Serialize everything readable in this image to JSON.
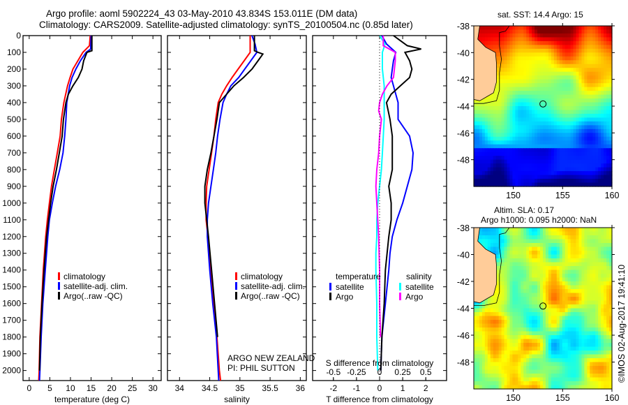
{
  "title": {
    "line1": "Argo profile: aoml 5902224_43 03-May-2010 43.834S 153.011E (DM data)",
    "line2": "Climatology: CARS2009. Satellite-adjusted climatology: synTS_20100504.nc (0.85d later)"
  },
  "colors": {
    "climatology": "#ff0000",
    "satellite": "#0000ff",
    "argo": "#000000",
    "salinity_satellite": "#00ffff",
    "salinity_argo": "#ff00ff",
    "land": "#ffcc99"
  },
  "credit": "ARGO NEW ZEALAND",
  "pi": "PI: PHIL SUTTON",
  "stamp": "©IMOS 02-Aug-2017 19:41:10",
  "chart_data": [
    {
      "type": "line",
      "name": "temperature-profile",
      "xlabel": "temperature (deg C)",
      "ylabel": "",
      "xlim": [
        -1.5,
        32
      ],
      "ylim": [
        2060,
        0
      ],
      "xticks": [
        0,
        5,
        10,
        15,
        20,
        25,
        30
      ],
      "yticks": [
        0,
        100,
        200,
        300,
        400,
        500,
        600,
        700,
        800,
        900,
        1000,
        1100,
        1200,
        1300,
        1400,
        1500,
        1600,
        1700,
        1800,
        1900,
        2000
      ],
      "legend": [
        "climatology",
        "satellite-adj. clim.",
        "Argo(..raw -QC)"
      ],
      "legend_position": "lower-center",
      "series": [
        {
          "name": "climatology",
          "depth": [
            0,
            60,
            100,
            150,
            200,
            250,
            300,
            400,
            500,
            600,
            700,
            800,
            900,
            1000,
            1100,
            1200,
            1400,
            1600,
            1800,
            2000,
            2060
          ],
          "values": [
            14.8,
            14.6,
            13.0,
            11.8,
            10.6,
            9.9,
            9.3,
            8.4,
            7.8,
            7.5,
            6.8,
            6.1,
            5.4,
            4.9,
            4.4,
            4.0,
            3.4,
            3.0,
            2.6,
            2.4,
            2.3
          ]
        },
        {
          "name": "satellite-adj. clim.",
          "depth": [
            0,
            80,
            100,
            150,
            200,
            250,
            300,
            400,
            500,
            600,
            700,
            800,
            900,
            1000,
            1100,
            1200,
            1400,
            1600,
            1800,
            2000,
            2060
          ],
          "values": [
            15.0,
            14.9,
            13.8,
            12.4,
            11.3,
            10.4,
            9.8,
            9.1,
            8.9,
            8.6,
            8.2,
            7.4,
            6.4,
            5.6,
            4.9,
            4.5,
            3.9,
            3.3,
            2.9,
            2.6,
            2.5
          ]
        },
        {
          "name": "Argo(..raw -QC)",
          "depth": [
            0,
            90,
            100,
            150,
            200,
            250,
            300,
            350,
            400,
            500,
            600,
            700,
            800,
            900,
            1000,
            1100,
            1200,
            1400,
            1600,
            1800,
            2000
          ],
          "values": [
            15.2,
            15.2,
            14.0,
            13.2,
            12.8,
            11.9,
            10.6,
            9.5,
            8.9,
            8.3,
            8.0,
            7.3,
            6.6,
            5.8,
            5.2,
            4.7,
            4.2,
            3.6,
            3.1,
            2.7,
            2.5
          ]
        }
      ]
    },
    {
      "type": "line",
      "name": "salinity-profile",
      "xlabel": "salinity",
      "xlim": [
        33.8,
        36.1
      ],
      "ylim": [
        2060,
        0
      ],
      "xticks": [
        34,
        34.5,
        35,
        35.5,
        36
      ],
      "xticklabels": [
        "34",
        "34.5",
        "35",
        "35.5",
        "36"
      ],
      "legend": [
        "climatology",
        "satellite-adj. clim.",
        "Argo(..raw -QC)"
      ],
      "legend_position": "lower-center",
      "series": [
        {
          "name": "climatology",
          "depth": [
            0,
            100,
            150,
            200,
            250,
            300,
            350,
            400,
            500,
            600,
            700,
            800,
            900,
            1000,
            1100,
            1200,
            1400,
            1600,
            1800,
            2000,
            2060
          ],
          "values": [
            35.17,
            35.17,
            35.07,
            34.97,
            34.87,
            34.78,
            34.7,
            34.64,
            34.6,
            34.57,
            34.53,
            34.49,
            34.45,
            34.44,
            34.44,
            34.47,
            34.52,
            34.57,
            34.62,
            34.66,
            34.68
          ]
        },
        {
          "name": "satellite-adj. clim.",
          "depth": [
            0,
            50,
            100,
            150,
            200,
            250,
            300,
            350,
            400,
            500,
            600,
            700,
            800,
            900,
            1000,
            1100,
            1200,
            1400,
            1600,
            1800,
            2000,
            2060
          ],
          "values": [
            35.2,
            35.25,
            35.28,
            35.18,
            35.08,
            34.98,
            34.85,
            34.78,
            34.72,
            34.67,
            34.63,
            34.6,
            34.56,
            34.52,
            34.48,
            34.46,
            34.46,
            34.5,
            34.55,
            34.61,
            34.64,
            34.65
          ]
        },
        {
          "name": "Argo(..raw -QC)",
          "depth": [
            0,
            90,
            100,
            110,
            150,
            200,
            250,
            300,
            350,
            400,
            500,
            600,
            700,
            800,
            900,
            1000,
            1100,
            1200,
            1400,
            1600,
            1800
          ],
          "values": [
            35.24,
            35.24,
            35.3,
            35.38,
            35.3,
            35.2,
            35.06,
            34.9,
            34.78,
            34.66,
            34.62,
            34.57,
            34.52,
            34.46,
            34.42,
            34.42,
            34.45,
            34.48,
            34.53,
            34.58,
            34.63
          ]
        }
      ]
    },
    {
      "type": "line",
      "name": "difference-profile",
      "xlabel": "T difference from climatology",
      "xlabel2": "S difference from climatology",
      "xlim": [
        -2.9,
        2.9
      ],
      "ylim": [
        2060,
        0
      ],
      "xticks": [
        -2,
        -1,
        0,
        1,
        2
      ],
      "xticks2": [
        -0.5,
        -0.25,
        0,
        0.25,
        0.5
      ],
      "xticklabels2": [
        "-0.5",
        "-0.25",
        "0",
        "0.25",
        "0.5"
      ],
      "zero_line": "dotted",
      "legend": {
        "temperature": [
          "satellite",
          "Argo"
        ],
        "salinity": [
          "satellite",
          "Argo"
        ]
      },
      "legend_position": "lower-center",
      "series": [
        {
          "name": "temperature satellite",
          "depth": [
            0,
            50,
            100,
            150,
            200,
            250,
            300,
            350,
            400,
            500,
            600,
            700,
            800,
            900,
            1000,
            1100,
            1200,
            1300,
            1400,
            1600,
            1800,
            2000
          ],
          "values": [
            0.1,
            0.3,
            0.7,
            0.6,
            0.55,
            0.5,
            0.6,
            0.7,
            0.8,
            0.8,
            1.3,
            1.45,
            1.4,
            1.2,
            1.0,
            0.75,
            0.55,
            0.45,
            0.4,
            0.25,
            0.1,
            0.05
          ]
        },
        {
          "name": "temperature Argo",
          "depth": [
            0,
            20,
            60,
            80,
            100,
            150,
            200,
            250,
            300,
            350,
            400,
            500,
            600,
            700,
            800,
            900,
            1000,
            1100,
            1200,
            1400,
            1600,
            1800,
            2000
          ],
          "values": [
            0.6,
            0.8,
            1.2,
            1.8,
            1.1,
            1.3,
            1.4,
            1.3,
            0.9,
            0.5,
            0.3,
            0.45,
            0.55,
            0.55,
            0.55,
            0.4,
            0.5,
            0.5,
            0.4,
            0.25,
            0.2,
            0.1,
            0.05
          ]
        },
        {
          "name": "salinity satellite",
          "depth": [
            0,
            50,
            100,
            200,
            300,
            400,
            500,
            600,
            700,
            800,
            900,
            1000,
            1100,
            1200,
            1300,
            1400,
            1600,
            1800,
            2000
          ],
          "values": [
            0.0,
            0.06,
            0.03,
            0.03,
            0.05,
            0.05,
            0.05,
            0.04,
            0.03,
            0.02,
            0.0,
            -0.02,
            -0.03,
            -0.03,
            -0.04,
            -0.04,
            -0.03,
            -0.03,
            -0.02
          ]
        },
        {
          "name": "salinity Argo",
          "depth": [
            0,
            60,
            100,
            150,
            250,
            300,
            350,
            400,
            450,
            500,
            600,
            700,
            800,
            900,
            1000,
            1200,
            1400,
            1600,
            1800
          ],
          "values": [
            0.04,
            0.04,
            0.17,
            0.17,
            0.15,
            0.08,
            0.03,
            0.0,
            -0.01,
            0.02,
            0.0,
            -0.01,
            -0.03,
            -0.04,
            -0.03,
            -0.01,
            0.0,
            0.0,
            0.01
          ]
        }
      ]
    },
    {
      "type": "heatmap",
      "name": "sst-map",
      "title": "sat. SST: 14.4 Argo: 15",
      "xlim": [
        146,
        160
      ],
      "ylim": [
        -50,
        -38
      ],
      "xticks": [
        150,
        155,
        160
      ],
      "yticks": [
        -38,
        -40,
        -42,
        -44,
        -46,
        -48
      ],
      "marker": {
        "lon": 153.011,
        "lat": -43.834
      }
    },
    {
      "type": "heatmap",
      "name": "sla-map",
      "title": "Altim. SLA: 0.17",
      "subtitle": "Argo h1000: 0.095 h2000: NaN",
      "xlim": [
        146,
        160
      ],
      "ylim": [
        -50,
        -38
      ],
      "xticks": [
        150,
        155,
        160
      ],
      "yticks": [
        -38,
        -40,
        -42,
        -44,
        -46,
        -48
      ],
      "marker": {
        "lon": 153.011,
        "lat": -43.834
      }
    }
  ]
}
